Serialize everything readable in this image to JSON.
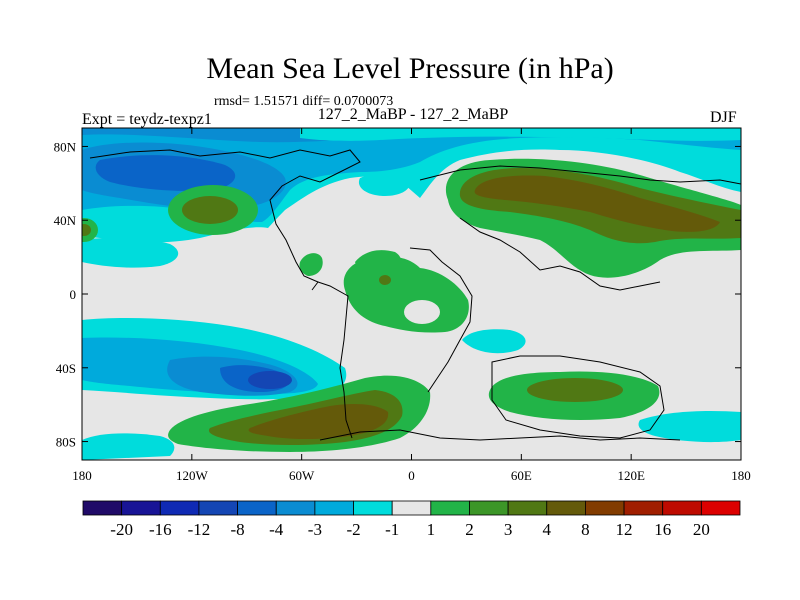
{
  "header": {
    "title": "Mean Sea Level Pressure (in hPa)",
    "stats": "rmsd= 1.51571 diff= 0.0700073",
    "left_label": "Expt = teydz-texpz1",
    "center_label": "127_2_MaBP - 127_2_MaBP",
    "right_label": "DJF"
  },
  "chart_data": {
    "type": "heatmap",
    "title": "Mean Sea Level Pressure (in hPa)",
    "subtitle": "127_2_MaBP - 127_2_MaBP",
    "xlabel": "",
    "ylabel": "",
    "x_range": [
      -180,
      180
    ],
    "y_range": [
      -90,
      90
    ],
    "x_ticks": [
      {
        "value": -180,
        "label": "180"
      },
      {
        "value": -120,
        "label": "120W"
      },
      {
        "value": -60,
        "label": "60W"
      },
      {
        "value": 0,
        "label": "0"
      },
      {
        "value": 60,
        "label": "60E"
      },
      {
        "value": 120,
        "label": "120E"
      },
      {
        "value": 180,
        "label": "180"
      }
    ],
    "y_ticks": [
      {
        "value": 80,
        "label": "80N"
      },
      {
        "value": 40,
        "label": "40N"
      },
      {
        "value": 0,
        "label": "0"
      },
      {
        "value": -40,
        "label": "40S"
      },
      {
        "value": -80,
        "label": "80S"
      }
    ],
    "colorbar": {
      "levels": [
        "-20",
        "-16",
        "-12",
        "-8",
        "-4",
        "-3",
        "-2",
        "-1",
        "1",
        "2",
        "3",
        "4",
        "8",
        "12",
        "16",
        "20"
      ],
      "colors": [
        "#200a68",
        "#181496",
        "#0f2ab4",
        "#1446b4",
        "#0a64c8",
        "#0a8cd2",
        "#00aadc",
        "#00dcdc",
        "#e6e6e6",
        "#22b448",
        "#3c9628",
        "#507814",
        "#645a0a",
        "#823c00",
        "#a01e00",
        "#be0a00",
        "#dc0000"
      ],
      "placement": "bottom"
    },
    "features": [
      {
        "name": "north-pacific-low",
        "lon": -140,
        "lat": 62,
        "level_index": 4
      },
      {
        "name": "north-pacific-ridge",
        "lon": -115,
        "lat": 47,
        "level_index": 11
      },
      {
        "name": "eurasia-high",
        "lon": 65,
        "lat": 57,
        "level_index": 12
      },
      {
        "name": "east-asia-high",
        "lon": 120,
        "lat": 44,
        "level_index": 12
      },
      {
        "name": "south-pacific-low",
        "lon": -75,
        "lat": -47,
        "level_index": 2
      },
      {
        "name": "southern-ocean-high",
        "lon": -40,
        "lat": -68,
        "level_index": 12
      },
      {
        "name": "indian-ocean-high",
        "lon": 75,
        "lat": -50,
        "level_index": 11
      },
      {
        "name": "africa-ridge",
        "lon": -10,
        "lat": 5,
        "level_index": 9
      }
    ]
  }
}
